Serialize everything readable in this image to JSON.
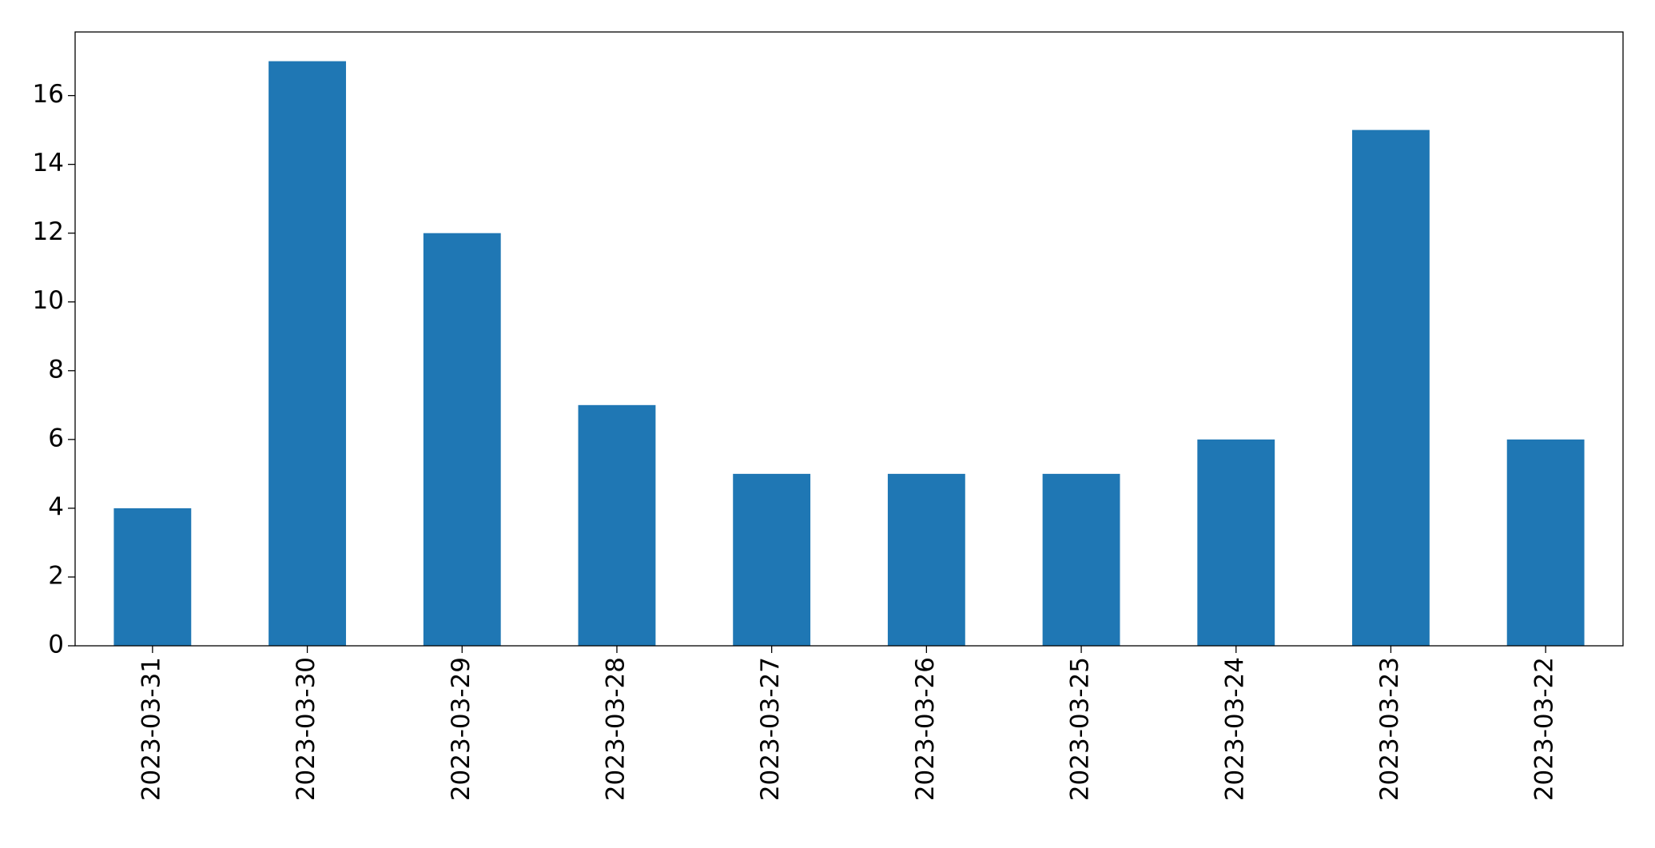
{
  "chart_data": {
    "type": "bar",
    "categories": [
      "2023-03-31",
      "2023-03-30",
      "2023-03-29",
      "2023-03-28",
      "2023-03-27",
      "2023-03-26",
      "2023-03-25",
      "2023-03-24",
      "2023-03-23",
      "2023-03-22"
    ],
    "values": [
      4,
      17,
      12,
      7,
      5,
      5,
      5,
      6,
      15,
      6
    ],
    "color": "#1f77b4",
    "ylim": [
      0,
      17.85
    ],
    "yticks": [
      0,
      2,
      4,
      6,
      8,
      10,
      12,
      14,
      16
    ],
    "grid": false
  }
}
